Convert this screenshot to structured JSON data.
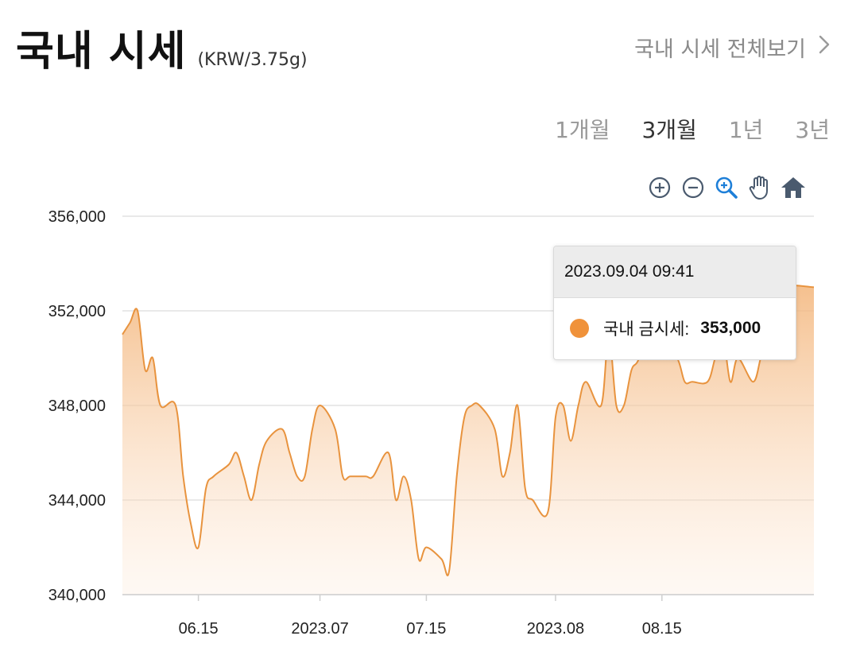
{
  "header": {
    "title": "국내 시세",
    "unit": "(KRW/3.75g)"
  },
  "more_link": {
    "label": "국내 시세 전체보기",
    "chevron_icon": "chevron-right-icon"
  },
  "period_tabs": [
    {
      "label": "1개월",
      "active": false
    },
    {
      "label": "3개월",
      "active": true
    },
    {
      "label": "1년",
      "active": false
    },
    {
      "label": "3년",
      "active": false
    }
  ],
  "toolbar": {
    "icons": [
      "zoom-in-icon",
      "zoom-out-icon",
      "selection-zoom-icon",
      "pan-hand-icon",
      "reset-home-icon"
    ]
  },
  "tooltip": {
    "datetime": "2023.09.04 09:41",
    "series_label": "국내 금시세:",
    "value": "353,000"
  },
  "colors": {
    "accent": "#f0923a",
    "line": "#e8933e",
    "fill_top": "#f5c08c",
    "icon": "#4a5a6e",
    "icon_active": "#1e7fd8"
  },
  "chart_data": {
    "type": "area",
    "series": [
      {
        "name": "국내 금시세",
        "points": [
          [
            "2023-06-05",
            351000
          ],
          [
            "2023-06-06",
            351500
          ],
          [
            "2023-06-07",
            352000
          ],
          [
            "2023-06-08",
            349500
          ],
          [
            "2023-06-09",
            350000
          ],
          [
            "2023-06-10",
            348000
          ],
          [
            "2023-06-12",
            348000
          ],
          [
            "2023-06-13",
            345000
          ],
          [
            "2023-06-14",
            343000
          ],
          [
            "2023-06-15",
            342000
          ],
          [
            "2023-06-16",
            344500
          ],
          [
            "2023-06-17",
            345000
          ],
          [
            "2023-06-19",
            345500
          ],
          [
            "2023-06-20",
            346000
          ],
          [
            "2023-06-21",
            345000
          ],
          [
            "2023-06-22",
            344000
          ],
          [
            "2023-06-23",
            345500
          ],
          [
            "2023-06-24",
            346500
          ],
          [
            "2023-06-26",
            347000
          ],
          [
            "2023-06-27",
            346000
          ],
          [
            "2023-06-28",
            345000
          ],
          [
            "2023-06-29",
            345000
          ],
          [
            "2023-06-30",
            347000
          ],
          [
            "2023-07-01",
            348000
          ],
          [
            "2023-07-03",
            347000
          ],
          [
            "2023-07-04",
            345000
          ],
          [
            "2023-07-05",
            345000
          ],
          [
            "2023-07-07",
            345000
          ],
          [
            "2023-07-08",
            345000
          ],
          [
            "2023-07-10",
            346000
          ],
          [
            "2023-07-11",
            344000
          ],
          [
            "2023-07-12",
            345000
          ],
          [
            "2023-07-13",
            344000
          ],
          [
            "2023-07-14",
            341500
          ],
          [
            "2023-07-15",
            342000
          ],
          [
            "2023-07-17",
            341500
          ],
          [
            "2023-07-18",
            341000
          ],
          [
            "2023-07-19",
            345000
          ],
          [
            "2023-07-20",
            347500
          ],
          [
            "2023-07-21",
            348000
          ],
          [
            "2023-07-22",
            348000
          ],
          [
            "2023-07-24",
            347000
          ],
          [
            "2023-07-25",
            345000
          ],
          [
            "2023-07-26",
            346000
          ],
          [
            "2023-07-27",
            348000
          ],
          [
            "2023-07-28",
            344500
          ],
          [
            "2023-07-29",
            344000
          ],
          [
            "2023-07-31",
            343500
          ],
          [
            "2023-08-01",
            347500
          ],
          [
            "2023-08-02",
            348000
          ],
          [
            "2023-08-03",
            346500
          ],
          [
            "2023-08-04",
            348000
          ],
          [
            "2023-08-05",
            349000
          ],
          [
            "2023-08-07",
            348000
          ],
          [
            "2023-08-08",
            351000
          ],
          [
            "2023-08-09",
            348000
          ],
          [
            "2023-08-10",
            348000
          ],
          [
            "2023-08-11",
            349500
          ],
          [
            "2023-08-12",
            350000
          ],
          [
            "2023-08-14",
            352000
          ],
          [
            "2023-08-15",
            350500
          ],
          [
            "2023-08-17",
            350000
          ],
          [
            "2023-08-18",
            349000
          ],
          [
            "2023-08-19",
            349000
          ],
          [
            "2023-08-21",
            349000
          ],
          [
            "2023-08-22",
            350000
          ],
          [
            "2023-08-23",
            351000
          ],
          [
            "2023-08-24",
            349000
          ],
          [
            "2023-08-25",
            350000
          ],
          [
            "2023-08-27",
            349000
          ],
          [
            "2023-08-28",
            350000
          ],
          [
            "2023-08-29",
            351000
          ],
          [
            "2023-08-30",
            352000
          ],
          [
            "2023-08-31",
            353000
          ],
          [
            "2023-09-04",
            353000
          ]
        ]
      }
    ],
    "x_ticks": [
      {
        "label": "06.15",
        "date": "2023-06-15"
      },
      {
        "label": "2023.07",
        "date": "2023-07-01"
      },
      {
        "label": "07.15",
        "date": "2023-07-15"
      },
      {
        "label": "2023.08",
        "date": "2023-08-01"
      },
      {
        "label": "08.15",
        "date": "2023-08-15"
      }
    ],
    "y_ticks": [
      "340,000",
      "344,000",
      "348,000",
      "352,000",
      "356,000"
    ],
    "ylim": [
      340000,
      356000
    ],
    "xlim": [
      "2023-06-05",
      "2023-09-04"
    ],
    "grid": true,
    "legend": "none"
  }
}
